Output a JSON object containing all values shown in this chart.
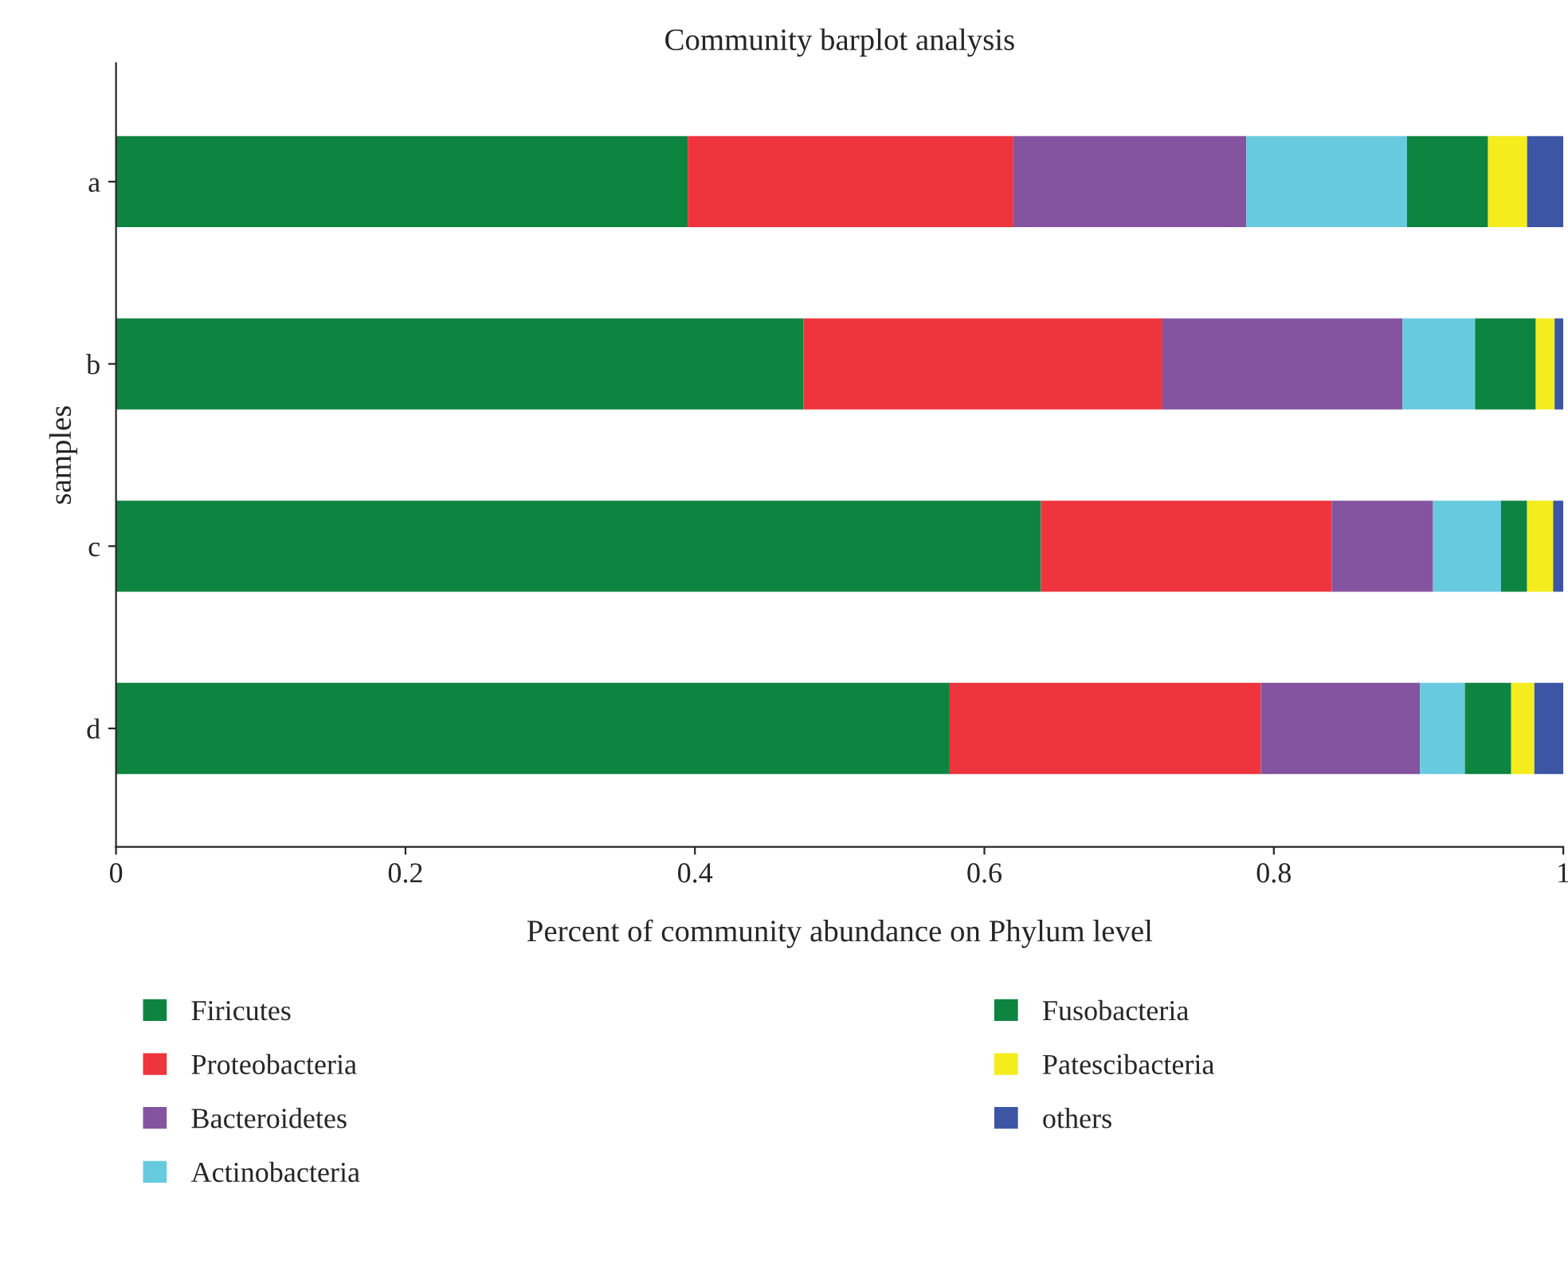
{
  "chart_data": {
    "type": "bar",
    "orientation": "horizontal",
    "stacked": true,
    "title": "Community barplot analysis",
    "xlabel": "Percent of community abundance on Phylum level",
    "ylabel": "samples",
    "categories": [
      "a",
      "b",
      "c",
      "d"
    ],
    "series": [
      {
        "name": "Firicutes",
        "color": "#0e8441",
        "values": [
          0.395,
          0.475,
          0.639,
          0.576
        ]
      },
      {
        "name": "Proteobacteria",
        "color": "#ee343d",
        "values": [
          0.225,
          0.248,
          0.201,
          0.215
        ]
      },
      {
        "name": "Bacteroidetes",
        "color": "#8454a1",
        "values": [
          0.161,
          0.166,
          0.07,
          0.11
        ]
      },
      {
        "name": "Actinobacteria",
        "color": "#67cadf",
        "values": [
          0.111,
          0.05,
          0.047,
          0.031
        ]
      },
      {
        "name": "Fusobacteria",
        "color": "#0e8441",
        "values": [
          0.056,
          0.042,
          0.018,
          0.032
        ]
      },
      {
        "name": "Patescibacteria",
        "color": "#f4ec1c",
        "values": [
          0.027,
          0.013,
          0.018,
          0.016
        ]
      },
      {
        "name": "others",
        "color": "#3c55a5",
        "values": [
          0.025,
          0.006,
          0.007,
          0.02
        ]
      }
    ],
    "xlim": [
      0,
      1
    ],
    "xticks": [
      0,
      0.2,
      0.4,
      0.6,
      0.8,
      1
    ],
    "grid": false,
    "legend": "bottom"
  }
}
